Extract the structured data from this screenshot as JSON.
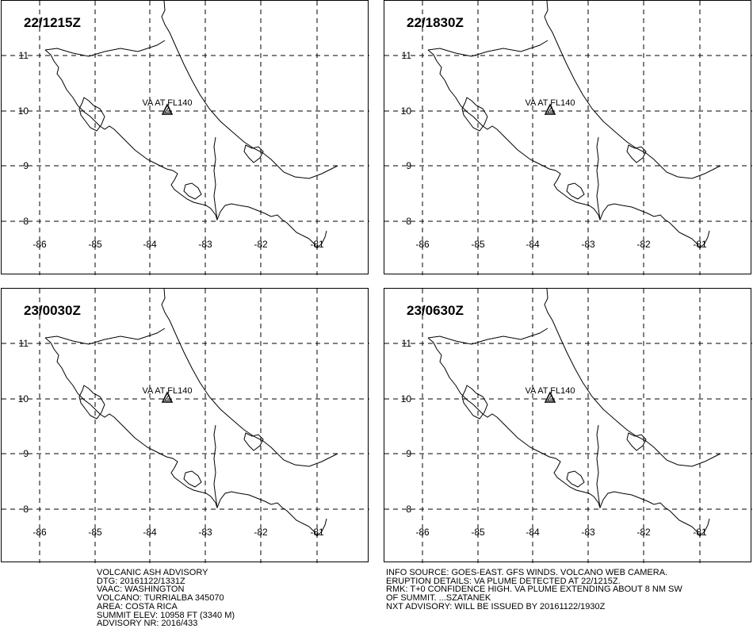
{
  "panels": [
    {
      "time": "22/1215Z",
      "annotation": "VA AT FL140"
    },
    {
      "time": "22/1830Z",
      "annotation": "VA AT FL140"
    },
    {
      "time": "23/0030Z",
      "annotation": "VA AT FL140"
    },
    {
      "time": "23/0630Z",
      "annotation": "VA AT FL140"
    }
  ],
  "map": {
    "lon_ticks": [
      "-86",
      "-85",
      "-84",
      "-83",
      "-82",
      "-81"
    ],
    "lat_ticks": [
      "11",
      "10",
      "9",
      "8"
    ],
    "gridlines": "dashed"
  },
  "advisory_left": [
    "VOLCANIC ASH ADVISORY",
    "DTG: 20161122/1331Z",
    "VAAC: WASHINGTON",
    "VOLCANO: TURRIALBA 345070",
    "AREA: COSTA RICA",
    "SUMMIT ELEV: 10958 FT (3340 M)",
    "ADVISORY NR: 2016/433"
  ],
  "advisory_right": [
    "INFO SOURCE: GOES-EAST. GFS WINDS. VOLCANO WEB CAMERA.",
    "ERUPTION DETAILS: VA PLUME DETECTED AT 22/1215Z.",
    "RMK: T+0 CONFIDENCE HIGH. VA PLUME EXTENDING ABOUT 8 NM SW",
    "OF SUMMIT. ...SZATANEK",
    "NXT ADVISORY: WILL BE ISSUED BY 20161122/1930Z"
  ]
}
